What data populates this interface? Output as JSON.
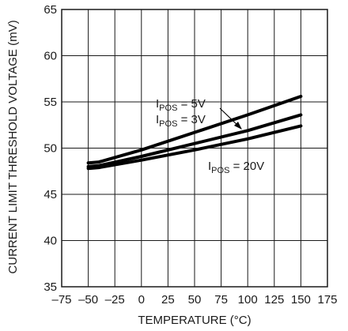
{
  "chart_data": {
    "type": "line",
    "xlabel": "TEMPERATURE (°C)",
    "ylabel": "CURRENT LIMIT THRESHOLD VOLTAGE (mV)",
    "xlim": [
      -75,
      175
    ],
    "ylim": [
      35,
      65
    ],
    "x_ticks": [
      -75,
      -50,
      -25,
      0,
      25,
      50,
      75,
      100,
      125,
      150,
      175
    ],
    "y_ticks": [
      35,
      40,
      45,
      50,
      55,
      60,
      65
    ],
    "x_tick_labels": [
      "–75",
      "–50",
      "–25",
      "0",
      "25",
      "50",
      "75",
      "100",
      "125",
      "150",
      "175"
    ],
    "y_tick_labels": [
      "35",
      "40",
      "45",
      "50",
      "55",
      "60",
      "65"
    ],
    "grid": true,
    "series": [
      {
        "name": "IPOS = 5V",
        "x": [
          -50,
          -40,
          0,
          50,
          100,
          150
        ],
        "y": [
          48.4,
          48.5,
          49.8,
          51.7,
          53.6,
          55.6
        ]
      },
      {
        "name": "IPOS = 3V",
        "x": [
          -50,
          -40,
          0,
          50,
          100,
          150
        ],
        "y": [
          48.0,
          48.1,
          49.1,
          50.5,
          51.9,
          53.6
        ]
      },
      {
        "name": "IPOS = 20V",
        "x": [
          -50,
          -40,
          0,
          50,
          100,
          150
        ],
        "y": [
          47.8,
          47.9,
          48.7,
          49.8,
          51.0,
          52.4
        ]
      }
    ],
    "annotations": [
      {
        "main": "I",
        "sub": "POS",
        "rest": " = 5V"
      },
      {
        "main": "I",
        "sub": "POS",
        "rest": " = 3V"
      },
      {
        "main": "I",
        "sub": "POS",
        "rest": " = 20V"
      }
    ]
  }
}
